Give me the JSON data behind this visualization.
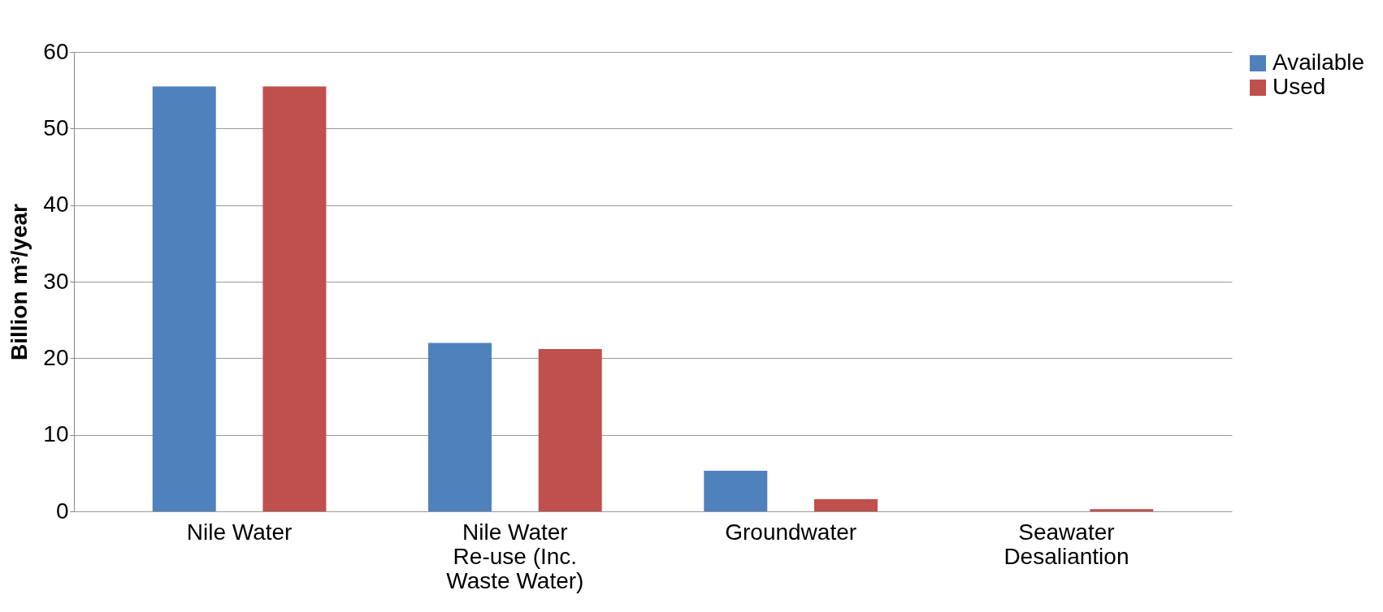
{
  "chart_data": {
    "type": "bar",
    "ylabel": "Billion m³/year",
    "categories": [
      "Nile Water",
      "Nile Water Re-use (Inc. Waste Water)",
      "Groundwater",
      "Seawater Desaliantion"
    ],
    "series": [
      {
        "name": "Available",
        "color": "#4f81bd",
        "values": [
          55.5,
          22,
          5.3,
          null
        ]
      },
      {
        "name": "Used",
        "color": "#c0504d",
        "values": [
          55.5,
          21.2,
          1.6,
          0.3
        ]
      }
    ],
    "ylim": [
      0,
      60
    ],
    "yticks": [
      0,
      10,
      20,
      30,
      40,
      50,
      60
    ],
    "grid": "y",
    "legend": "right"
  }
}
